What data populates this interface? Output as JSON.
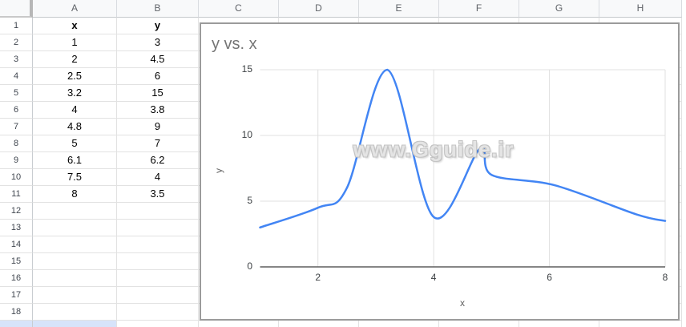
{
  "app": "spreadsheet-with-embedded-chart",
  "spreadsheet": {
    "column_headers": [
      "A",
      "B",
      "C",
      "D",
      "E",
      "F",
      "G",
      "H"
    ],
    "visible_rows": 18,
    "cells": {
      "A": [
        "x",
        "1",
        "2",
        "2.5",
        "3.2",
        "4",
        "4.8",
        "5",
        "6.1",
        "7.5",
        "8"
      ],
      "B": [
        "y",
        "3",
        "4.5",
        "6",
        "15",
        "3.8",
        "9",
        "7",
        "6.2",
        "4",
        "3.5"
      ]
    }
  },
  "chart": {
    "title": "y vs. x",
    "xlabel": "x",
    "ylabel": "y",
    "watermark": "www.Gguide.ir",
    "colors": {
      "line": "#4285f4",
      "grid": "#e0e0e0",
      "axis": "#5f5f5f",
      "title_text": "#757575",
      "selection_blue": "#d7e3fa"
    }
  },
  "chart_data": {
    "type": "line",
    "title": "y vs. x",
    "xlabel": "x",
    "ylabel": "y",
    "x": [
      1,
      2,
      2.5,
      3.2,
      4,
      4.8,
      5,
      6.1,
      7.5,
      8
    ],
    "y": [
      3,
      4.5,
      6,
      15,
      3.8,
      9,
      7,
      6.2,
      4,
      3.5
    ],
    "series": [
      {
        "name": "y",
        "color": "#4285f4"
      }
    ],
    "xticks": [
      2,
      4,
      6,
      8
    ],
    "yticks": [
      0,
      5,
      10,
      15
    ],
    "xlim": [
      1,
      8
    ],
    "ylim": [
      0,
      15
    ],
    "smooth": true,
    "grid": true,
    "legend": "none"
  }
}
